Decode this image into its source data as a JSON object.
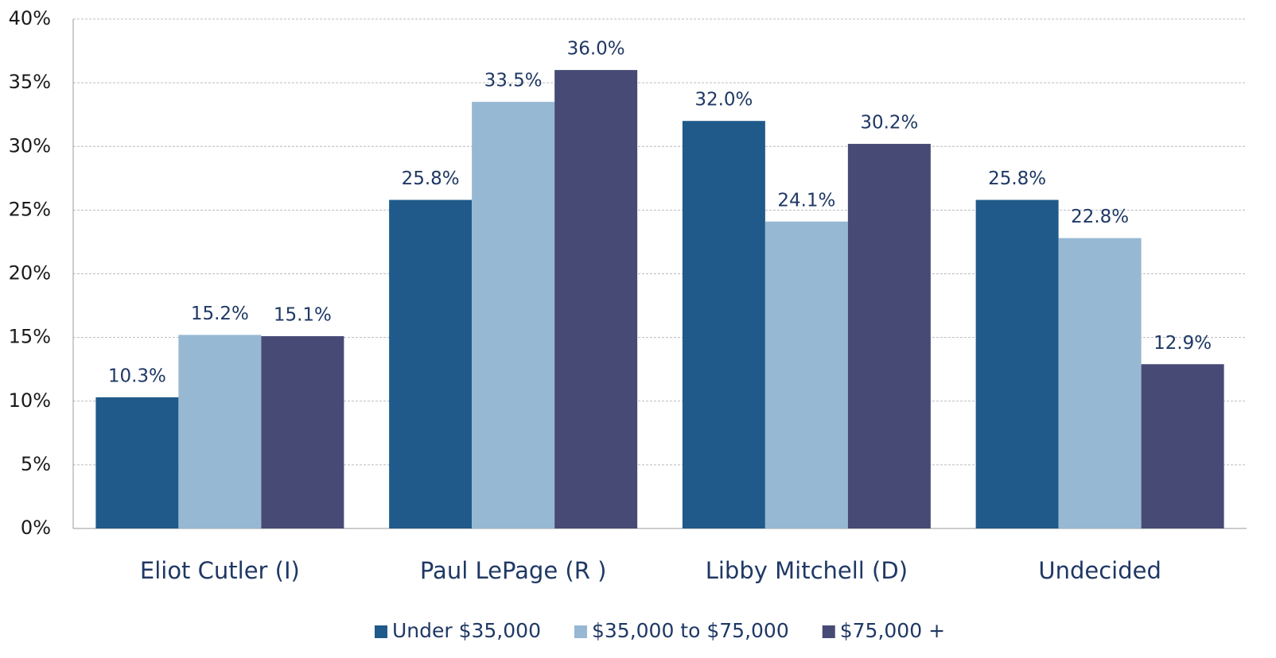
{
  "chart_data": {
    "type": "bar",
    "categories": [
      "Eliot Cutler (I)",
      "Paul LePage (R )",
      "Libby Mitchell (D)",
      "Undecided"
    ],
    "series": [
      {
        "name": "Under $35,000",
        "color": "#1f5a8a",
        "values": [
          10.3,
          25.8,
          32.0,
          25.8
        ],
        "value_labels": [
          "10.3%",
          "25.8%",
          "32.0%",
          "25.8%"
        ]
      },
      {
        "name": "$35,000 to $75,000",
        "color": "#96b8d3",
        "values": [
          15.2,
          33.5,
          24.1,
          22.8
        ],
        "value_labels": [
          "15.2%",
          "33.5%",
          "24.1%",
          "22.8%"
        ]
      },
      {
        "name": "$75,000 +",
        "color": "#474a75",
        "values": [
          15.1,
          36.0,
          30.2,
          12.9
        ],
        "value_labels": [
          "15.1%",
          "36.0%",
          "30.2%",
          "12.9%"
        ]
      }
    ],
    "ylim": [
      0,
      40
    ],
    "yticks": [
      {
        "value": 0,
        "label": "0%"
      },
      {
        "value": 5,
        "label": "5%"
      },
      {
        "value": 10,
        "label": "10%"
      },
      {
        "value": 15,
        "label": "15%"
      },
      {
        "value": 20,
        "label": "20%"
      },
      {
        "value": 25,
        "label": "25%"
      },
      {
        "value": 30,
        "label": "30%"
      },
      {
        "value": 35,
        "label": "35%"
      },
      {
        "value": 40,
        "label": "40%"
      }
    ],
    "grid": true,
    "legend": "bottom"
  }
}
